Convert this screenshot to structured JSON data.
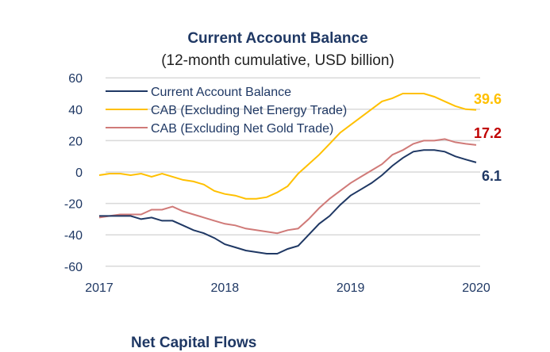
{
  "chart_data": {
    "type": "line",
    "title": "Current Account Balance",
    "subtitle": "(12-month cumulative, USD billion)",
    "xlabel": "",
    "ylabel": "",
    "x_ticks": [
      "2017",
      "2018",
      "2019",
      "2020"
    ],
    "y_ticks": [
      60,
      40,
      20,
      0,
      -20,
      -40,
      -60
    ],
    "ylim": [
      -60,
      60
    ],
    "x_range": [
      "2017-01",
      "2020-01"
    ],
    "grid": "horizontal",
    "legend": "top-left",
    "series": [
      {
        "name": "Current Account Balance",
        "color": "#1f3864",
        "end_label": "6.1",
        "values": [
          -28,
          -28,
          -28,
          -28,
          -30,
          -29,
          -31,
          -31,
          -34,
          -37,
          -39,
          -42,
          -46,
          -48,
          -50,
          -51,
          -52,
          -52,
          -49,
          -47,
          -40,
          -33,
          -28,
          -21,
          -15,
          -11,
          -7,
          -2,
          4,
          9,
          13,
          14,
          14,
          13,
          10,
          8,
          6.1
        ]
      },
      {
        "name": "CAB (Excluding Net Energy Trade)",
        "color": "#ffc000",
        "end_label": "39.6",
        "values": [
          -2,
          -1,
          -1,
          -2,
          -1,
          -3,
          -1,
          -3,
          -5,
          -6,
          -8,
          -12,
          -14,
          -15,
          -17,
          -17,
          -16,
          -13,
          -9,
          -1,
          5,
          11,
          18,
          25,
          30,
          35,
          40,
          45,
          47,
          50,
          50,
          50,
          48,
          45,
          42,
          40,
          39.6
        ]
      },
      {
        "name": "CAB (Excluding Net Gold Trade)",
        "color": "#d07a78",
        "end_label": "17.2",
        "end_label_color": "#c00000",
        "values": [
          -29,
          -28,
          -27,
          -27,
          -27,
          -24,
          -24,
          -22,
          -25,
          -27,
          -29,
          -31,
          -33,
          -34,
          -36,
          -37,
          -38,
          -39,
          -37,
          -36,
          -30,
          -23,
          -17,
          -12,
          -7,
          -3,
          1,
          5,
          11,
          14,
          18,
          20,
          20,
          21,
          19,
          18,
          17.2
        ]
      }
    ]
  },
  "next_title": "Net Capital Flows"
}
